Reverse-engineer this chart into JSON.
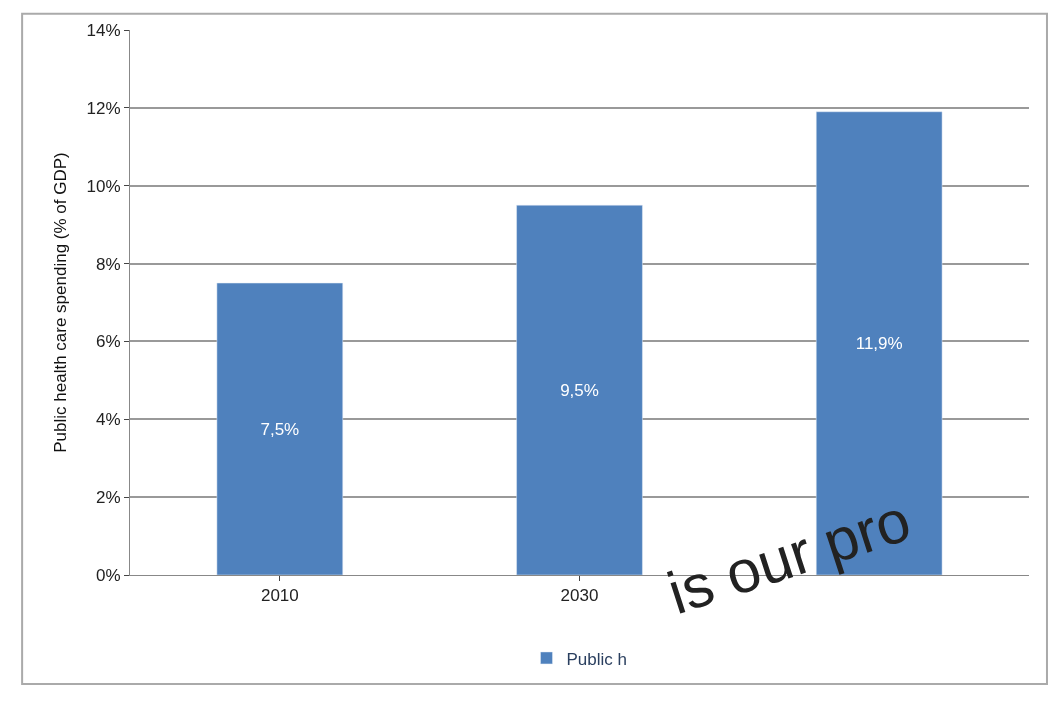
{
  "chart_data": {
    "type": "bar",
    "ylabel": "Public health care spending (% of GDP)",
    "categories": [
      "2010",
      "2030",
      null
    ],
    "series": [
      {
        "name": "Public h",
        "color": "#4f81bd",
        "values": [
          7.5,
          9.5,
          11.9
        ],
        "value_labels": [
          "7,5%",
          "9,5%",
          "11,9%"
        ]
      }
    ],
    "ylim": [
      0,
      14
    ],
    "yticks": [
      {
        "value": 0,
        "label": "0%"
      },
      {
        "value": 2,
        "label": "2%"
      },
      {
        "value": 4,
        "label": "4%"
      },
      {
        "value": 6,
        "label": "6%"
      },
      {
        "value": 8,
        "label": "8%"
      },
      {
        "value": 10,
        "label": "10%"
      },
      {
        "value": 12,
        "label": "12%"
      },
      {
        "value": 14,
        "label": "14%"
      }
    ],
    "grid": "y",
    "legend": "bottom",
    "annotations": [
      "is our pro"
    ]
  }
}
